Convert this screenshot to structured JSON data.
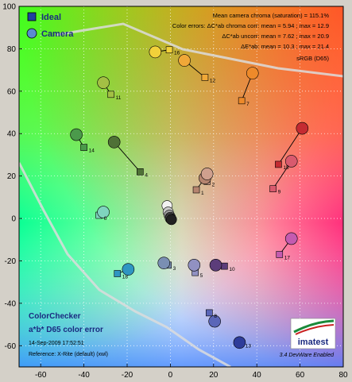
{
  "chart_data": {
    "type": "scatter",
    "xlim": [
      -70,
      80
    ],
    "ylim": [
      -70,
      100
    ],
    "x_ticks": [
      -60,
      -40,
      -20,
      0,
      20,
      40,
      60,
      80
    ],
    "y_ticks": [
      -60,
      -40,
      -20,
      0,
      20,
      40,
      60,
      80,
      100
    ],
    "grid": true,
    "legend": {
      "position": "top-left",
      "entries": [
        "Ideal",
        "Camera"
      ]
    },
    "stats_lines": [
      "Mean camera chroma (saturation) = 115.1%",
      "Color errors: ΔC*ab chroma corr: mean = 5.94 ; max = 12.9",
      "ΔC*ab uncorr: mean = 7.62 ; max = 20.9",
      "ΔE*ab: mean = 10.3 ; max = 21.4",
      "sRGB (D65)"
    ],
    "caption_lines": [
      "ColorChecker",
      "a*b* D65 color error",
      "14-Sep-2009 17:52:51",
      "Reference: X-Rite (default) (xwl)"
    ],
    "logo_text": "imatest",
    "footer_right": "3.4 DevWare Enabled",
    "patches": [
      {
        "label": "1",
        "ideal": [
          12,
          13.5
        ],
        "camera": [
          16,
          19
        ],
        "color": "#b5846f"
      },
      {
        "label": "2",
        "ideal": [
          17,
          17.5
        ],
        "camera": [
          17,
          21
        ],
        "color": "#cfa08e"
      },
      {
        "label": "3",
        "ideal": [
          -1,
          -22
        ],
        "camera": [
          -3,
          -21
        ],
        "color": "#7a8fb3"
      },
      {
        "label": "4",
        "ideal": [
          -14,
          22
        ],
        "camera": [
          -26,
          36
        ],
        "color": "#4f7136"
      },
      {
        "label": "5",
        "ideal": [
          11.5,
          -25.5
        ],
        "camera": [
          11,
          -22
        ],
        "color": "#9191c2"
      },
      {
        "label": "6",
        "ideal": [
          -33,
          1.5
        ],
        "camera": [
          -31,
          3
        ],
        "color": "#7fd4bf"
      },
      {
        "label": "7",
        "ideal": [
          33,
          55.5
        ],
        "camera": [
          38,
          68.5
        ],
        "color": "#ee8a2a"
      },
      {
        "label": "8",
        "ideal": [
          18,
          -44.5
        ],
        "camera": [
          20.5,
          -48.5
        ],
        "color": "#5a66b8"
      },
      {
        "label": "9",
        "ideal": [
          47.5,
          14
        ],
        "camera": [
          56,
          27
        ],
        "color": "#d95a6e"
      },
      {
        "label": "10",
        "ideal": [
          25,
          -22.5
        ],
        "camera": [
          21,
          -22
        ],
        "color": "#5c3d7a"
      },
      {
        "label": "11",
        "ideal": [
          -27.5,
          58.5
        ],
        "camera": [
          -31,
          64
        ],
        "color": "#a3c044"
      },
      {
        "label": "12",
        "ideal": [
          16,
          66.5
        ],
        "camera": [
          6.5,
          74.5
        ],
        "color": "#f0a838"
      },
      {
        "label": "13",
        "ideal": [
          32.5,
          -58.5
        ],
        "camera": [
          32,
          -58.5
        ],
        "color": "#2e3c9a"
      },
      {
        "label": "14",
        "ideal": [
          -40,
          33.5
        ],
        "camera": [
          -43.5,
          39.5
        ],
        "color": "#4b9a4b"
      },
      {
        "label": "15",
        "ideal": [
          50,
          25.5
        ],
        "camera": [
          61,
          42.5
        ],
        "color": "#c42b32"
      },
      {
        "label": "16",
        "ideal": [
          -0.5,
          79.5
        ],
        "camera": [
          -7,
          78.5
        ],
        "color": "#f2d13a"
      },
      {
        "label": "17",
        "ideal": [
          50.5,
          -17
        ],
        "camera": [
          56,
          -9.5
        ],
        "color": "#c45bb0"
      },
      {
        "label": "18",
        "ideal": [
          -24.5,
          -26
        ],
        "camera": [
          -19.5,
          -24
        ],
        "color": "#2f96c2"
      }
    ],
    "neutrals": [
      {
        "camera": [
          -1.5,
          6
        ],
        "color": "#f2f2f2"
      },
      {
        "camera": [
          -1,
          3
        ],
        "color": "#c8c8c8"
      },
      {
        "camera": [
          -0.5,
          1.5
        ],
        "color": "#a0a0a0"
      },
      {
        "camera": [
          0,
          0.5
        ],
        "color": "#787878"
      },
      {
        "camera": [
          0,
          0
        ],
        "color": "#4d4d4d"
      },
      {
        "camera": [
          0.5,
          -0.5
        ],
        "color": "#222222"
      }
    ]
  }
}
